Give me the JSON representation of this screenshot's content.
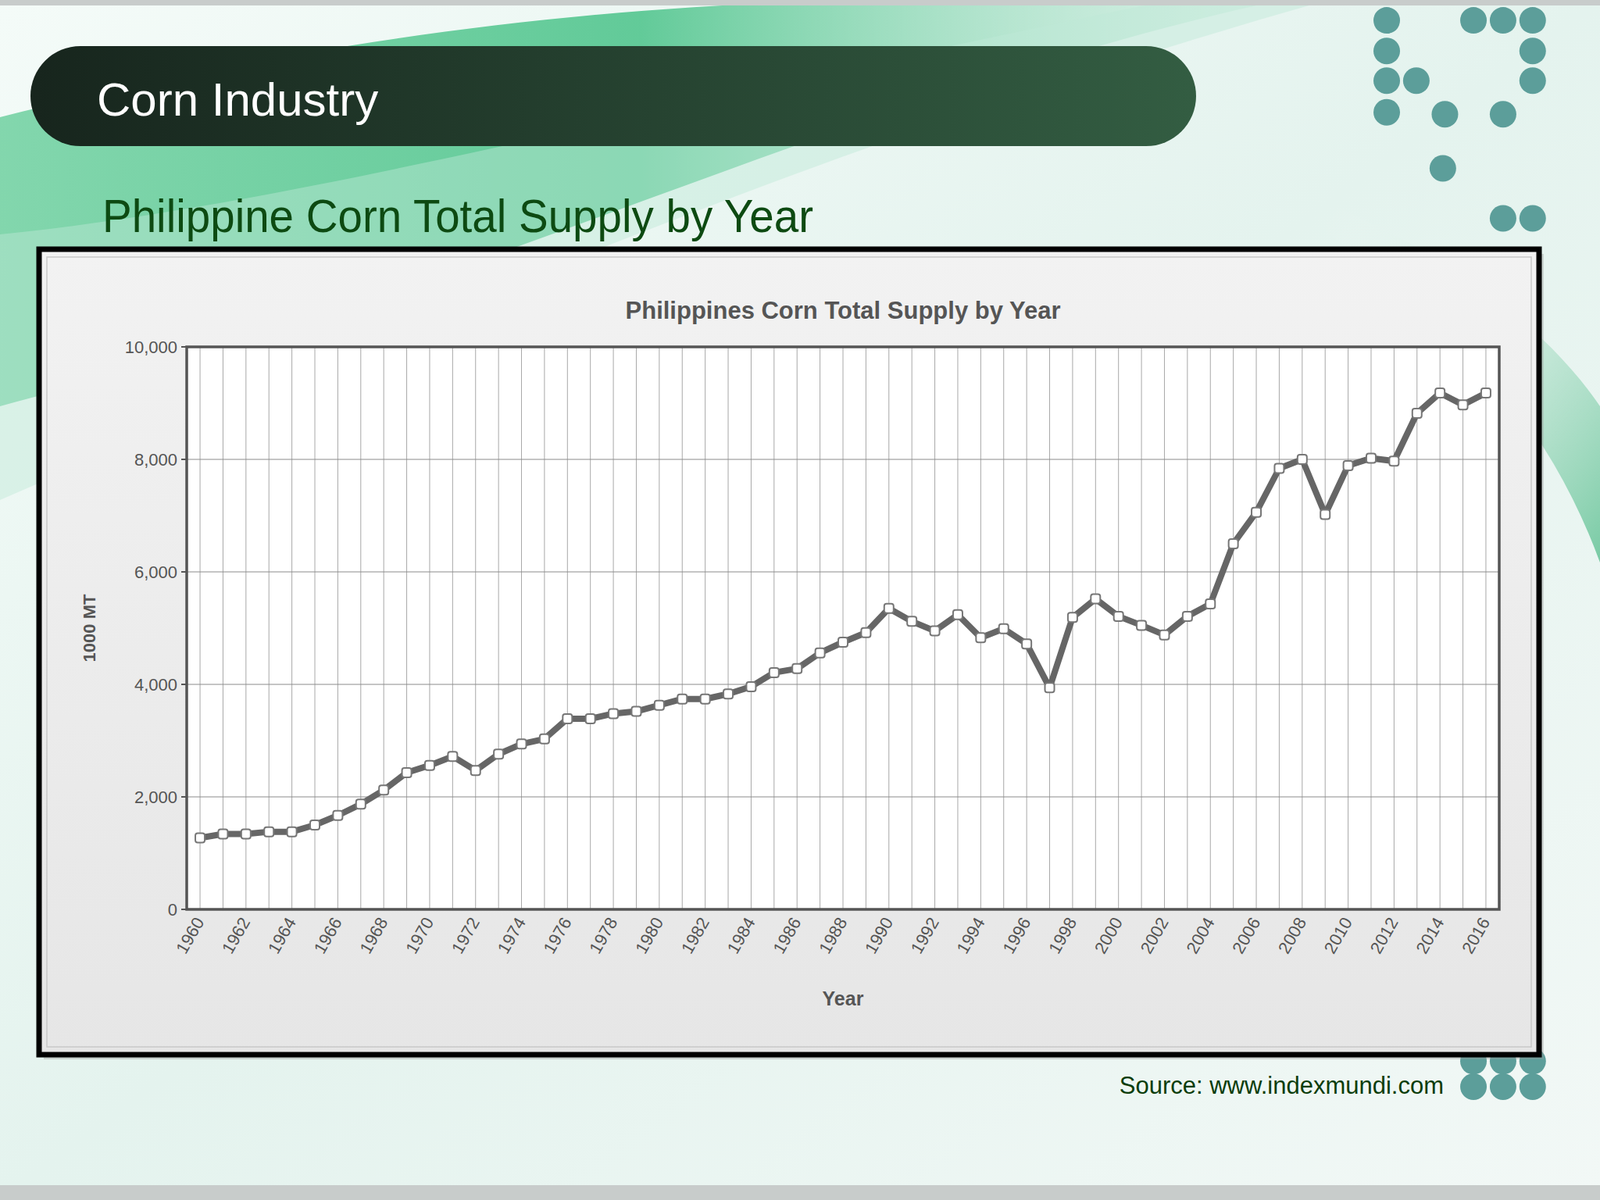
{
  "slide": {
    "heading": "Corn Industry",
    "subtitle": "Philippine Corn Total Supply by Year",
    "source": "Source: www.indexmundi.com"
  },
  "chart_data": {
    "type": "line",
    "title": "Philippines Corn Total Supply by Year",
    "x_label": "Year",
    "y_label": "1000 MT",
    "categories": [
      "1960",
      null,
      "1962",
      null,
      "1964",
      null,
      "1966",
      null,
      "1968",
      null,
      "1970",
      null,
      "1972",
      null,
      "1974",
      null,
      "1976",
      null,
      "1978",
      null,
      "1980",
      null,
      "1982",
      null,
      "1984",
      null,
      "1986",
      null,
      "1988",
      null,
      "1990",
      null,
      "1992",
      null,
      "1994",
      null,
      "1996",
      null,
      "1998",
      null,
      "2000",
      null,
      "2002",
      null,
      "2004",
      null,
      "2006",
      null,
      "2008",
      null,
      "2010",
      null,
      "2012",
      null,
      "2014",
      null,
      "2016"
    ],
    "values": [
      1270,
      1340,
      1340,
      1380,
      1380,
      1500,
      1670,
      1870,
      2120,
      2430,
      2560,
      2720,
      2470,
      2760,
      2940,
      3030,
      3390,
      3390,
      3480,
      3520,
      3630,
      3740,
      3740,
      3830,
      3960,
      4210,
      4280,
      4560,
      4750,
      4920,
      5350,
      5120,
      4950,
      5240,
      4830,
      4990,
      4720,
      3940,
      5190,
      5520,
      5210,
      5050,
      4880,
      5210,
      5430,
      6500,
      7060,
      7840,
      8000,
      7020,
      7890,
      8020,
      7970,
      8820,
      9180,
      8970,
      9180
    ],
    "color": "#666666",
    "marker": "square",
    "ylim": [
      0,
      10000
    ],
    "yticks": [
      0,
      {
        "value": 2000,
        "label": "2,000"
      },
      {
        "value": 4000,
        "label": "4,000"
      },
      {
        "value": 6000,
        "label": "6,000"
      },
      {
        "value": 8000,
        "label": "8,000"
      },
      {
        "value": 10000,
        "label": "10,000"
      }
    ],
    "grid": true
  }
}
